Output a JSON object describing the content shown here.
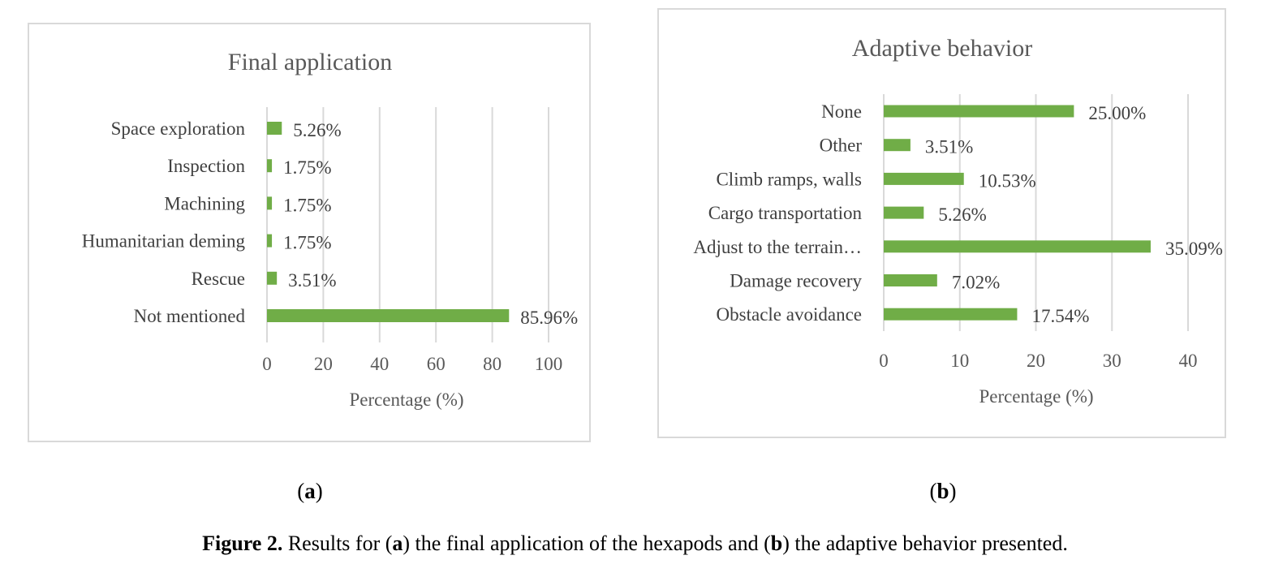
{
  "figure": {
    "sub_a": "a",
    "sub_b": "b",
    "caption_label": "Figure 2.",
    "caption_parts": [
      "Results for (",
      "a",
      ") the final application of the hexapods and (",
      "b",
      ") the adaptive behavior presented."
    ]
  },
  "chart_data": [
    {
      "type": "bar",
      "orientation": "horizontal",
      "title": "Final application",
      "categories": [
        "Space exploration",
        "Inspection",
        "Machining",
        "Humanitarian deming",
        "Rescue",
        "Not mentioned"
      ],
      "values": [
        5.26,
        1.75,
        1.75,
        1.75,
        3.51,
        85.96
      ],
      "data_labels": [
        "5.26%",
        "1.75%",
        "1.75%",
        "1.75%",
        "3.51%",
        "85.96%"
      ],
      "xlabel": "Percentage (%)",
      "ylabel": "",
      "xlim": [
        0,
        100
      ],
      "ticks": [
        "0",
        "20",
        "40",
        "60",
        "80",
        "100"
      ],
      "grid": true,
      "bar_color": "#70ad47"
    },
    {
      "type": "bar",
      "orientation": "horizontal",
      "title": "Adaptive behavior",
      "categories": [
        "None",
        "Other",
        "Climb ramps, walls",
        "Cargo transportation",
        "Adjust to the terrain…",
        "Damage recovery",
        "Obstacle avoidance"
      ],
      "values": [
        25.0,
        3.51,
        10.53,
        5.26,
        35.09,
        7.02,
        17.54
      ],
      "data_labels": [
        "25.00%",
        "3.51%",
        "10.53%",
        "5.26%",
        "35.09%",
        "7.02%",
        "17.54%"
      ],
      "xlabel": "Percentage (%)",
      "ylabel": "",
      "xlim": [
        0,
        40
      ],
      "ticks": [
        "0",
        "10",
        "20",
        "30",
        "40"
      ],
      "grid": true,
      "bar_color": "#70ad47"
    }
  ]
}
